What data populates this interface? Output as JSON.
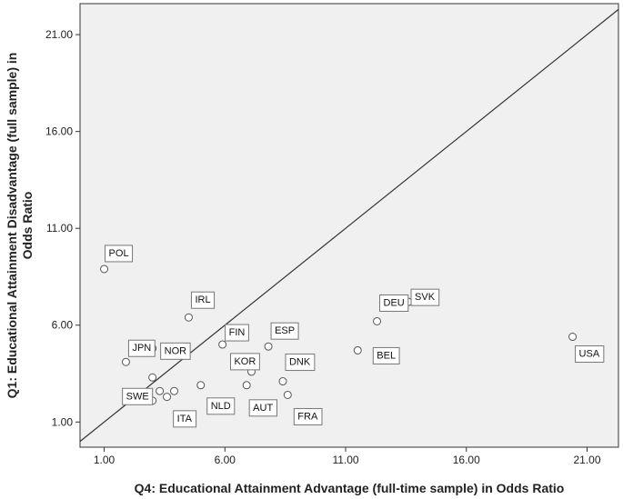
{
  "chart_data": {
    "type": "scatter",
    "title": "",
    "xlabel": "Q4: Educational Attainment Advantage (full-time sample) in Odds Ratio",
    "ylabel_lines": [
      "Q1: Educational Attainment Disadvantage (full sample) in",
      "Odds Ratio"
    ],
    "xlim": [
      0.0,
      22.3
    ],
    "ylim": [
      -0.3,
      22.6
    ],
    "x_ticks": [
      "1.00",
      "6.00",
      "11.00",
      "16.00",
      "21.00"
    ],
    "y_ticks": [
      "1.00",
      "6.00",
      "11.00",
      "16.00",
      "21.00"
    ],
    "x_tick_values": [
      1,
      6,
      11,
      16,
      21
    ],
    "y_tick_values": [
      1,
      6,
      11,
      16,
      21
    ],
    "grid": false,
    "reference_line": "y = x",
    "colors": {
      "plot_bg": "#f0f0f0",
      "frame": "#333333",
      "marker_fill": "#ffffff",
      "marker_edge": "#555555"
    },
    "points": [
      {
        "label": "POL",
        "x": 1.0,
        "y": 8.9
      },
      {
        "label": "IRL",
        "x": 4.5,
        "y": 6.4
      },
      {
        "label": "JPN",
        "x": 1.9,
        "y": 4.1
      },
      {
        "label": "NOR",
        "x": 3.0,
        "y": 4.8
      },
      {
        "label": "FIN",
        "x": 5.9,
        "y": 5.0
      },
      {
        "label": "ESP",
        "x": 7.8,
        "y": 4.9
      },
      {
        "label": "KOR",
        "x": 7.1,
        "y": 3.6
      },
      {
        "label": "DNK",
        "x": 8.4,
        "y": 3.1
      },
      {
        "label": "SWE",
        "x": 3.0,
        "y": 3.3
      },
      {
        "label": "",
        "x": 3.3,
        "y": 2.6
      },
      {
        "label": "",
        "x": 3.6,
        "y": 2.3
      },
      {
        "label": "",
        "x": 3.9,
        "y": 2.6
      },
      {
        "label": "ITA",
        "x": 3.0,
        "y": 2.1
      },
      {
        "label": "NLD",
        "x": 5.0,
        "y": 2.9
      },
      {
        "label": "AUT",
        "x": 6.9,
        "y": 2.9
      },
      {
        "label": "FRA",
        "x": 8.6,
        "y": 2.4
      },
      {
        "label": "BEL",
        "x": 11.5,
        "y": 4.7
      },
      {
        "label": "DEU",
        "x": 12.3,
        "y": 6.2
      },
      {
        "label": "SVK",
        "x": 13.6,
        "y": 7.2
      },
      {
        "label": "USA",
        "x": 20.4,
        "y": 5.4
      }
    ],
    "label_offsets_note": ""
  }
}
